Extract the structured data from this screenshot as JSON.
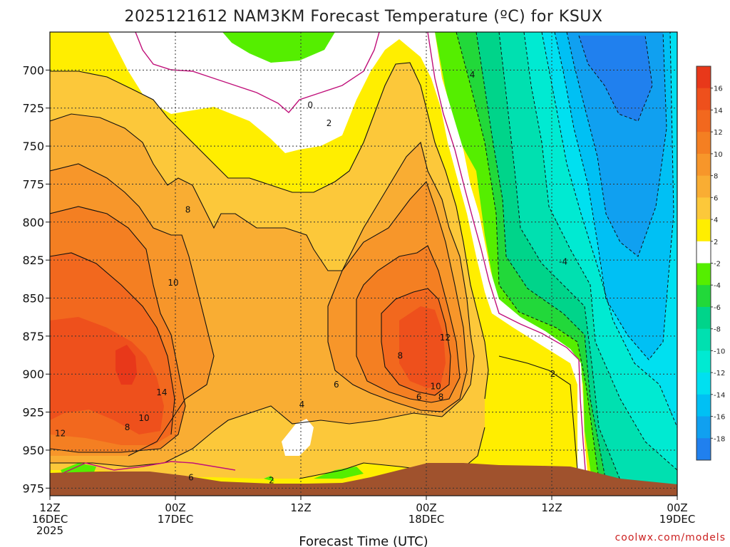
{
  "chart_data": {
    "type": "contour",
    "title": "2025121612 NAM3KM Forecast Temperature (ºC) for KSUX",
    "xlabel": "Forecast Time (UTC)",
    "ylabel": "",
    "x_ticks": [
      {
        "hour": 0,
        "line1": "12Z",
        "line2": "16DEC",
        "line3": "2025"
      },
      {
        "hour": 12,
        "line1": "00Z",
        "line2": "17DEC",
        "line3": ""
      },
      {
        "hour": 24,
        "line1": "12Z",
        "line2": "",
        "line3": ""
      },
      {
        "hour": 36,
        "line1": "00Z",
        "line2": "18DEC",
        "line3": ""
      },
      {
        "hour": 48,
        "line1": "12Z",
        "line2": "",
        "line3": ""
      },
      {
        "hour": 60,
        "line1": "00Z",
        "line2": "19DEC",
        "line3": ""
      }
    ],
    "xlim_hours": [
      0,
      60
    ],
    "ylim_hpa": [
      980,
      675
    ],
    "y_ticks": [
      700,
      725,
      750,
      775,
      800,
      825,
      850,
      875,
      900,
      925,
      950,
      975
    ],
    "grid": true,
    "colorbar": {
      "bins": [
        {
          "low": 16,
          "high": 18,
          "color": "#e8381a"
        },
        {
          "low": 14,
          "high": 16,
          "color": "#ee501c"
        },
        {
          "low": 12,
          "high": 14,
          "color": "#f2681e"
        },
        {
          "low": 10,
          "high": 12,
          "color": "#f47f22"
        },
        {
          "low": 8,
          "high": 10,
          "color": "#f7962a"
        },
        {
          "low": 6,
          "high": 8,
          "color": "#f9ad33"
        },
        {
          "low": 4,
          "high": 6,
          "color": "#fcc83a"
        },
        {
          "low": 2,
          "high": 4,
          "color": "#ffee00"
        },
        {
          "low": -2,
          "high": 2,
          "color": "#ffffff"
        },
        {
          "low": -4,
          "high": -2,
          "color": "#55ee00"
        },
        {
          "low": -6,
          "high": -4,
          "color": "#22d83a"
        },
        {
          "low": -8,
          "high": -6,
          "color": "#00d48a"
        },
        {
          "low": -10,
          "high": -8,
          "color": "#00e0b0"
        },
        {
          "low": -12,
          "high": -10,
          "color": "#00ead2"
        },
        {
          "low": -14,
          "high": -12,
          "color": "#00e0f0"
        },
        {
          "low": -16,
          "high": -14,
          "color": "#00c0f4"
        },
        {
          "low": -18,
          "high": -16,
          "color": "#10a0f0"
        },
        {
          "low": -20,
          "high": -18,
          "color": "#2080ee"
        }
      ],
      "tick_labels": [
        "16",
        "14",
        "12",
        "10",
        "8",
        "6",
        "4",
        "2",
        "-2",
        "-4",
        "-6",
        "-8",
        "-10",
        "-12",
        "-14",
        "-16",
        "-18"
      ]
    },
    "contour_labels": [
      {
        "text": "0",
        "hour": 24.9,
        "p": 723
      },
      {
        "text": "2",
        "hour": 26.7,
        "p": 735
      },
      {
        "text": "4",
        "hour": 40.4,
        "p": 703
      },
      {
        "text": "8",
        "hour": 13.2,
        "p": 792
      },
      {
        "text": "10",
        "hour": 11.8,
        "p": 840
      },
      {
        "text": "14",
        "hour": 10.7,
        "p": 912
      },
      {
        "text": "10",
        "hour": 9.0,
        "p": 929
      },
      {
        "text": "8",
        "hour": 7.4,
        "p": 935
      },
      {
        "text": "12",
        "hour": 1.0,
        "p": 939
      },
      {
        "text": "6",
        "hour": 13.5,
        "p": 968
      },
      {
        "text": "6",
        "hour": 27.4,
        "p": 907
      },
      {
        "text": "4",
        "hour": 24.1,
        "p": 920
      },
      {
        "text": "2",
        "hour": 21.2,
        "p": 970
      },
      {
        "text": "8",
        "hour": 33.5,
        "p": 888
      },
      {
        "text": "6",
        "hour": 35.3,
        "p": 915
      },
      {
        "text": "12",
        "hour": 37.8,
        "p": 876
      },
      {
        "text": "10",
        "hour": 36.9,
        "p": 908
      },
      {
        "text": "8",
        "hour": 37.4,
        "p": 915
      },
      {
        "text": "-4",
        "hour": 49.1,
        "p": 826
      },
      {
        "text": "2",
        "hour": 48.1,
        "p": 900
      }
    ],
    "credit": "coolwx.com/models"
  }
}
